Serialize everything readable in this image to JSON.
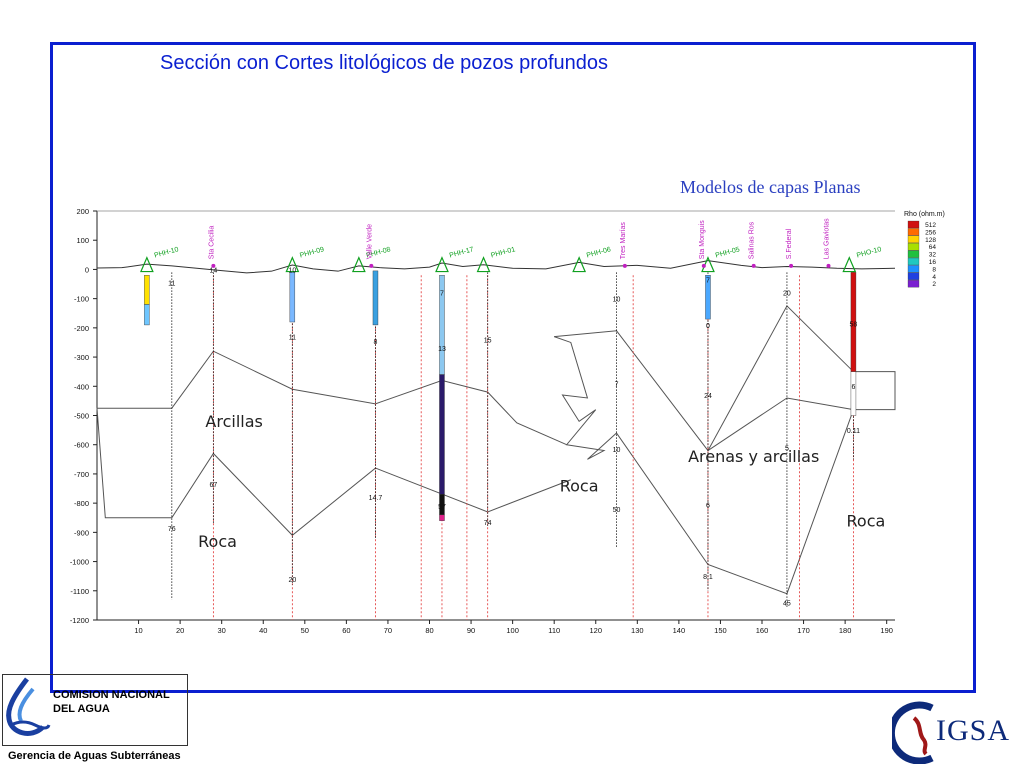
{
  "slide": {
    "title": "Sección con Cortes litológicos de pozos profundos",
    "subtitle": "Modelos de capas Planas"
  },
  "chart_data": {
    "type": "cross-section",
    "y_ticks": [
      200,
      100,
      0,
      -100,
      -200,
      -300,
      -400,
      -500,
      -600,
      -700,
      -800,
      -900,
      -1000,
      -1100,
      -1200
    ],
    "y_tick_labels": [
      "200",
      "100",
      "0",
      "-100",
      "-200",
      "-300",
      "-400",
      "-500",
      "-600",
      "-700",
      "-800",
      "-900",
      "-1000",
      "-1100",
      "-1200"
    ],
    "x_ticks": [
      10,
      20,
      30,
      40,
      50,
      60,
      70,
      80,
      90,
      100,
      110,
      120,
      130,
      140,
      150,
      160,
      170,
      180,
      190
    ],
    "xlim": [
      0,
      192
    ],
    "ylim": [
      -1200,
      200
    ],
    "legend": {
      "title": "Rho (ohm.m)",
      "entries": [
        {
          "label": "512",
          "color": "#d01010"
        },
        {
          "label": "256",
          "color": "#ff6a00"
        },
        {
          "label": "128",
          "color": "#ffd200"
        },
        {
          "label": "64",
          "color": "#a8e000"
        },
        {
          "label": "32",
          "color": "#20c040"
        },
        {
          "label": "16",
          "color": "#20c8c0"
        },
        {
          "label": "8",
          "color": "#1e90ff"
        },
        {
          "label": "4",
          "color": "#2040e0"
        },
        {
          "label": "2",
          "color": "#7a20d0"
        }
      ]
    },
    "zone_labels": [
      {
        "text": "Arcillas",
        "x": 33,
        "y": -540
      },
      {
        "text": "Roca",
        "x": 29,
        "y": -950
      },
      {
        "text": "Roca",
        "x": 116,
        "y": -760
      },
      {
        "text": "Arenas y arcillas",
        "x": 158,
        "y": -660
      },
      {
        "text": "Roca",
        "x": 185,
        "y": -880
      }
    ],
    "wells": [
      {
        "name": "PHH-10",
        "x": 12
      },
      {
        "name": "PHH-09",
        "x": 47
      },
      {
        "name": "PHH-08",
        "x": 63
      },
      {
        "name": "PHH-17",
        "x": 83
      },
      {
        "name": "PHH-01",
        "x": 93
      },
      {
        "name": "PHH-06",
        "x": 116
      },
      {
        "name": "PHH-05",
        "x": 147
      },
      {
        "name": "PHO-10",
        "x": 181
      }
    ],
    "well_labels": [
      {
        "text": "Sta Cecilia",
        "x": 28
      },
      {
        "text": "Valle Verde",
        "x": 66
      },
      {
        "text": "Tres Marías",
        "x": 127
      },
      {
        "text": "Sta Monguis",
        "x": 146
      },
      {
        "text": "Salinas Ros",
        "x": 158
      },
      {
        "text": "S.Federal",
        "x": 167
      },
      {
        "text": "Las Gaviotas",
        "x": 176
      }
    ],
    "sounding_values": [
      {
        "x": 18,
        "y": -55,
        "text": "11"
      },
      {
        "x": 18,
        "y": -895,
        "text": "76"
      },
      {
        "x": 28,
        "y": -10,
        "text": "14"
      },
      {
        "x": 28,
        "y": -745,
        "text": "67"
      },
      {
        "x": 47,
        "y": -10,
        "text": "10"
      },
      {
        "x": 47,
        "y": -1070,
        "text": "20"
      },
      {
        "x": 47,
        "y": -240,
        "text": "11"
      },
      {
        "x": 67,
        "y": -255,
        "text": "8"
      },
      {
        "x": 67,
        "y": -790,
        "text": "14.7"
      },
      {
        "x": 83,
        "y": -90,
        "text": "7"
      },
      {
        "x": 83,
        "y": -280,
        "text": "13"
      },
      {
        "x": 83,
        "y": -820,
        "text": "57"
      },
      {
        "x": 94,
        "y": -250,
        "text": "15"
      },
      {
        "x": 94,
        "y": -875,
        "text": "74"
      },
      {
        "x": 125,
        "y": -110,
        "text": "10"
      },
      {
        "x": 125,
        "y": -400,
        "text": "7"
      },
      {
        "x": 125,
        "y": -625,
        "text": "10"
      },
      {
        "x": 125,
        "y": -830,
        "text": "50"
      },
      {
        "x": 147,
        "y": -45,
        "text": "7"
      },
      {
        "x": 147,
        "y": -200,
        "text": "0"
      },
      {
        "x": 147,
        "y": -440,
        "text": "24"
      },
      {
        "x": 147,
        "y": -815,
        "text": "6"
      },
      {
        "x": 147,
        "y": -1060,
        "text": "8.1"
      },
      {
        "x": 166,
        "y": -90,
        "text": "20"
      },
      {
        "x": 166,
        "y": -620,
        "text": "5"
      },
      {
        "x": 166,
        "y": -1150,
        "text": "45"
      },
      {
        "x": 182,
        "y": -195,
        "text": "58"
      },
      {
        "x": 182,
        "y": -410,
        "text": "6"
      },
      {
        "x": 182,
        "y": -560,
        "text": "0.11"
      }
    ]
  },
  "footer": {
    "org_line1": "COMISION NACIONAL",
    "org_line2": "DEL  AGUA",
    "department": "Gerencia de Aguas Subterráneas",
    "partner_logo": "IGSA"
  }
}
